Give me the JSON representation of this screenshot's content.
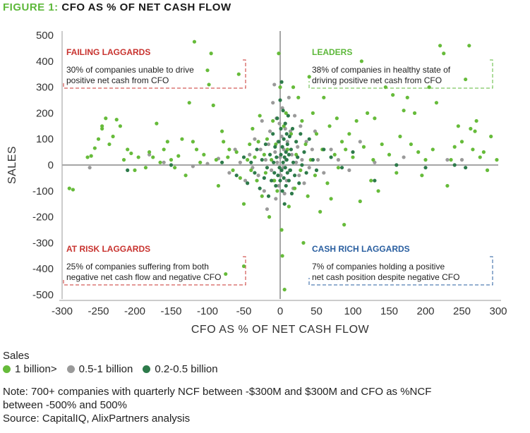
{
  "header": {
    "figure_num": "FIGURE 1:",
    "figure_title": "CFO AS % OF NET CASH FLOW"
  },
  "chart_data": {
    "type": "scatter",
    "xlabel": "CFO AS % OF NET CASH FLOW",
    "ylabel": "SALES",
    "xlim": [
      -300,
      300
    ],
    "ylim": [
      -500,
      500
    ],
    "xticks": [
      "-300",
      "-250",
      "-200",
      "-150",
      "-100",
      "-50",
      "0",
      "50",
      "100",
      "150",
      "200",
      "250",
      "300"
    ],
    "yticks": [
      "500",
      "400",
      "300",
      "200",
      "100",
      "0",
      "-100",
      "-200",
      "-300",
      "-400",
      "-500"
    ],
    "grid": false,
    "legend_title": "Sales",
    "legend_position": "bottom-left",
    "quadrants": [
      {
        "key": "failing",
        "title": "FAILING LAGGARDS",
        "line1": "30% of companies unable to drive",
        "line2": "positive net cash from CFO",
        "color": "#c8332f"
      },
      {
        "key": "leaders",
        "title": "LEADERS",
        "line1": "38% of companies in healthy state of",
        "line2": "driving positive net cash from CFO",
        "color": "#5db83a"
      },
      {
        "key": "atrisk",
        "title": "AT RISK LAGGARDS",
        "line1": "25% of companies suffering from both",
        "line2": "negative net cash flow and negative CFO",
        "color": "#c8332f"
      },
      {
        "key": "cashrich",
        "title": "CASH RICH LAGGARDS",
        "line1": "7% of companies holding a positive",
        "line2": "net cash position despite negative CFO",
        "color": "#2a5fa0"
      }
    ],
    "series": [
      {
        "name": "1 billion>",
        "color": "#66bb3a",
        "points": [
          [
            -290,
            -90
          ],
          [
            -285,
            -95
          ],
          [
            -265,
            30
          ],
          [
            -260,
            35
          ],
          [
            -255,
            65
          ],
          [
            -250,
            100
          ],
          [
            -245,
            150
          ],
          [
            -240,
            180
          ],
          [
            -245,
            140
          ],
          [
            -235,
            80
          ],
          [
            -230,
            110
          ],
          [
            -225,
            175
          ],
          [
            -220,
            150
          ],
          [
            -215,
            20
          ],
          [
            -210,
            60
          ],
          [
            -205,
            45
          ],
          [
            -200,
            -20
          ],
          [
            -195,
            30
          ],
          [
            -185,
            -10
          ],
          [
            -180,
            50
          ],
          [
            -175,
            30
          ],
          [
            -170,
            160
          ],
          [
            -165,
            10
          ],
          [
            -160,
            60
          ],
          [
            -155,
            90
          ],
          [
            -150,
            20
          ],
          [
            -145,
            -10
          ],
          [
            -140,
            35
          ],
          [
            -135,
            100
          ],
          [
            -130,
            -40
          ],
          [
            -125,
            240
          ],
          [
            -120,
            90
          ],
          [
            -118,
            475
          ],
          [
            -115,
            60
          ],
          [
            -110,
            10
          ],
          [
            -105,
            40
          ],
          [
            -100,
            365
          ],
          [
            -98,
            310
          ],
          [
            -95,
            430
          ],
          [
            -92,
            230
          ],
          [
            -88,
            20
          ],
          [
            -85,
            -80
          ],
          [
            -80,
            130
          ],
          [
            -78,
            90
          ],
          [
            -75,
            -420
          ],
          [
            -72,
            30
          ],
          [
            -70,
            60
          ],
          [
            -65,
            -20
          ],
          [
            -60,
            50
          ],
          [
            -57,
            350
          ],
          [
            -55,
            -50
          ],
          [
            -50,
            -150
          ],
          [
            -50,
            -390
          ],
          [
            -45,
            20
          ],
          [
            -42,
            80
          ],
          [
            -40,
            -20
          ],
          [
            -38,
            140
          ],
          [
            -35,
            30
          ],
          [
            -32,
            -60
          ],
          [
            -30,
            90
          ],
          [
            -28,
            190
          ],
          [
            -25,
            -120
          ],
          [
            -22,
            40
          ],
          [
            -20,
            -30
          ],
          [
            -18,
            100
          ],
          [
            -15,
            -200
          ],
          [
            -12,
            20
          ],
          [
            -10,
            170
          ],
          [
            -8,
            -60
          ],
          [
            -6,
            80
          ],
          [
            -4,
            -100
          ],
          [
            -2,
            430
          ],
          [
            0,
            300
          ],
          [
            2,
            -250
          ],
          [
            3,
            -350
          ],
          [
            5,
            150
          ],
          [
            6,
            -480
          ],
          [
            8,
            200
          ],
          [
            10,
            60
          ],
          [
            12,
            -160
          ],
          [
            15,
            120
          ],
          [
            18,
            300
          ],
          [
            20,
            -90
          ],
          [
            22,
            40
          ],
          [
            25,
            260
          ],
          [
            28,
            -20
          ],
          [
            30,
            170
          ],
          [
            32,
            -300
          ],
          [
            35,
            80
          ],
          [
            38,
            -120
          ],
          [
            40,
            340
          ],
          [
            42,
            20
          ],
          [
            45,
            200
          ],
          [
            48,
            -40
          ],
          [
            50,
            120
          ],
          [
            55,
            -180
          ],
          [
            58,
            60
          ],
          [
            60,
            260
          ],
          [
            65,
            -70
          ],
          [
            68,
            150
          ],
          [
            70,
            -130
          ],
          [
            75,
            40
          ],
          [
            78,
            180
          ],
          [
            80,
            -10
          ],
          [
            85,
            90
          ],
          [
            88,
            -230
          ],
          [
            90,
            60
          ],
          [
            95,
            120
          ],
          [
            100,
            30
          ],
          [
            105,
            170
          ],
          [
            110,
            -140
          ],
          [
            112,
            400
          ],
          [
            115,
            70
          ],
          [
            120,
            200
          ],
          [
            125,
            -60
          ],
          [
            128,
            20
          ],
          [
            130,
            180
          ],
          [
            135,
            -100
          ],
          [
            140,
            80
          ],
          [
            145,
            300
          ],
          [
            150,
            40
          ],
          [
            155,
            270
          ],
          [
            160,
            -30
          ],
          [
            165,
            110
          ],
          [
            170,
            210
          ],
          [
            175,
            260
          ],
          [
            180,
            80
          ],
          [
            185,
            200
          ],
          [
            190,
            50
          ],
          [
            195,
            -40
          ],
          [
            200,
            20
          ],
          [
            205,
            300
          ],
          [
            210,
            60
          ],
          [
            215,
            240
          ],
          [
            220,
            460
          ],
          [
            225,
            430
          ],
          [
            230,
            -80
          ],
          [
            235,
            20
          ],
          [
            240,
            70
          ],
          [
            245,
            150
          ],
          [
            250,
            90
          ],
          [
            255,
            330
          ],
          [
            260,
            460
          ],
          [
            262,
            140
          ],
          [
            265,
            60
          ],
          [
            268,
            130
          ],
          [
            270,
            170
          ],
          [
            275,
            30
          ],
          [
            280,
            50
          ],
          [
            285,
            -20
          ],
          [
            290,
            110
          ],
          [
            298,
            20
          ]
        ]
      },
      {
        "name": "0.5-1 billion",
        "color": "#9a9a9a",
        "points": [
          [
            -262,
            -10
          ],
          [
            -180,
            40
          ],
          [
            -160,
            10
          ],
          [
            -120,
            -5
          ],
          [
            -100,
            5
          ],
          [
            -85,
            25
          ],
          [
            -70,
            -30
          ],
          [
            -62,
            60
          ],
          [
            -55,
            10
          ],
          [
            -48,
            -60
          ],
          [
            -42,
            40
          ],
          [
            -38,
            -10
          ],
          [
            -35,
            100
          ],
          [
            -30,
            -40
          ],
          [
            -27,
            60
          ],
          [
            -25,
            170
          ],
          [
            -22,
            -100
          ],
          [
            -20,
            20
          ],
          [
            -18,
            -170
          ],
          [
            -16,
            80
          ],
          [
            -14,
            130
          ],
          [
            -12,
            -20
          ],
          [
            -10,
            240
          ],
          [
            -9,
            -60
          ],
          [
            -8,
            310
          ],
          [
            -7,
            50
          ],
          [
            -6,
            -130
          ],
          [
            -5,
            180
          ],
          [
            -4,
            10
          ],
          [
            -3,
            90
          ],
          [
            -2,
            -80
          ],
          [
            -1,
            160
          ],
          [
            0,
            30
          ],
          [
            1,
            -40
          ],
          [
            2,
            110
          ],
          [
            3,
            220
          ],
          [
            4,
            -10
          ],
          [
            5,
            60
          ],
          [
            6,
            -110
          ],
          [
            7,
            140
          ],
          [
            8,
            20
          ],
          [
            9,
            -60
          ],
          [
            10,
            90
          ],
          [
            12,
            260
          ],
          [
            13,
            -20
          ],
          [
            14,
            130
          ],
          [
            16,
            40
          ],
          [
            18,
            -90
          ],
          [
            20,
            190
          ],
          [
            22,
            10
          ],
          [
            24,
            70
          ],
          [
            26,
            -40
          ],
          [
            28,
            150
          ],
          [
            30,
            20
          ],
          [
            33,
            -70
          ],
          [
            36,
            90
          ],
          [
            40,
            -10
          ],
          [
            44,
            60
          ],
          [
            48,
            130
          ],
          [
            52,
            20
          ],
          [
            60,
            -30
          ],
          [
            70,
            60
          ],
          [
            80,
            20
          ],
          [
            95,
            -20
          ],
          [
            110,
            90
          ],
          [
            130,
            10
          ],
          [
            170,
            30
          ],
          [
            230,
            20
          ],
          [
            250,
            20
          ]
        ]
      },
      {
        "name": "0.2-0.5 billion",
        "color": "#2d7a4a",
        "points": [
          [
            -210,
            -20
          ],
          [
            -150,
            0
          ],
          [
            -80,
            10
          ],
          [
            -60,
            -40
          ],
          [
            -50,
            30
          ],
          [
            -45,
            -70
          ],
          [
            -40,
            10
          ],
          [
            -35,
            -30
          ],
          [
            -32,
            60
          ],
          [
            -28,
            -90
          ],
          [
            -25,
            20
          ],
          [
            -22,
            -50
          ],
          [
            -20,
            80
          ],
          [
            -18,
            -10
          ],
          [
            -16,
            -120
          ],
          [
            -14,
            40
          ],
          [
            -12,
            -60
          ],
          [
            -10,
            120
          ],
          [
            -9,
            10
          ],
          [
            -8,
            -30
          ],
          [
            -7,
            70
          ],
          [
            -6,
            -80
          ],
          [
            -5,
            30
          ],
          [
            -4,
            180
          ],
          [
            -3,
            -40
          ],
          [
            -2,
            90
          ],
          [
            -1,
            -10
          ],
          [
            0,
            250
          ],
          [
            0,
            -60
          ],
          [
            1,
            40
          ],
          [
            1,
            140
          ],
          [
            2,
            -20
          ],
          [
            2,
            320
          ],
          [
            3,
            70
          ],
          [
            3,
            -100
          ],
          [
            4,
            10
          ],
          [
            4,
            210
          ],
          [
            5,
            -50
          ],
          [
            5,
            100
          ],
          [
            6,
            30
          ],
          [
            6,
            -150
          ],
          [
            7,
            160
          ],
          [
            7,
            -10
          ],
          [
            8,
            50
          ],
          [
            8,
            -80
          ],
          [
            9,
            120
          ],
          [
            9,
            20
          ],
          [
            10,
            -30
          ],
          [
            10,
            80
          ],
          [
            11,
            190
          ],
          [
            12,
            -60
          ],
          [
            12,
            40
          ],
          [
            13,
            110
          ],
          [
            14,
            -20
          ],
          [
            15,
            60
          ],
          [
            16,
            -110
          ],
          [
            17,
            140
          ],
          [
            18,
            10
          ],
          [
            20,
            -40
          ],
          [
            22,
            90
          ],
          [
            24,
            30
          ],
          [
            26,
            -70
          ],
          [
            28,
            120
          ],
          [
            30,
            0
          ],
          [
            33,
            50
          ],
          [
            36,
            -30
          ],
          [
            40,
            100
          ],
          [
            45,
            20
          ],
          [
            50,
            -20
          ],
          [
            60,
            60
          ],
          [
            70,
            30
          ],
          [
            85,
            -10
          ],
          [
            100,
            50
          ],
          [
            130,
            -60
          ],
          [
            160,
            0
          ],
          [
            200,
            -10
          ],
          [
            240,
            0
          ],
          [
            255,
            -10
          ]
        ]
      }
    ]
  },
  "legend": {
    "title": "Sales",
    "items": [
      "1 billion>",
      "0.5-1 billion",
      "0.2-0.5 billion"
    ]
  },
  "notes": {
    "line1": "Note: 700+ companies with quarterly NCF between -$300M and $300M and CFO as %NCF",
    "line2": "between -500% and 500%",
    "source": "Source: CapitalIQ, AlixPartners analysis"
  }
}
